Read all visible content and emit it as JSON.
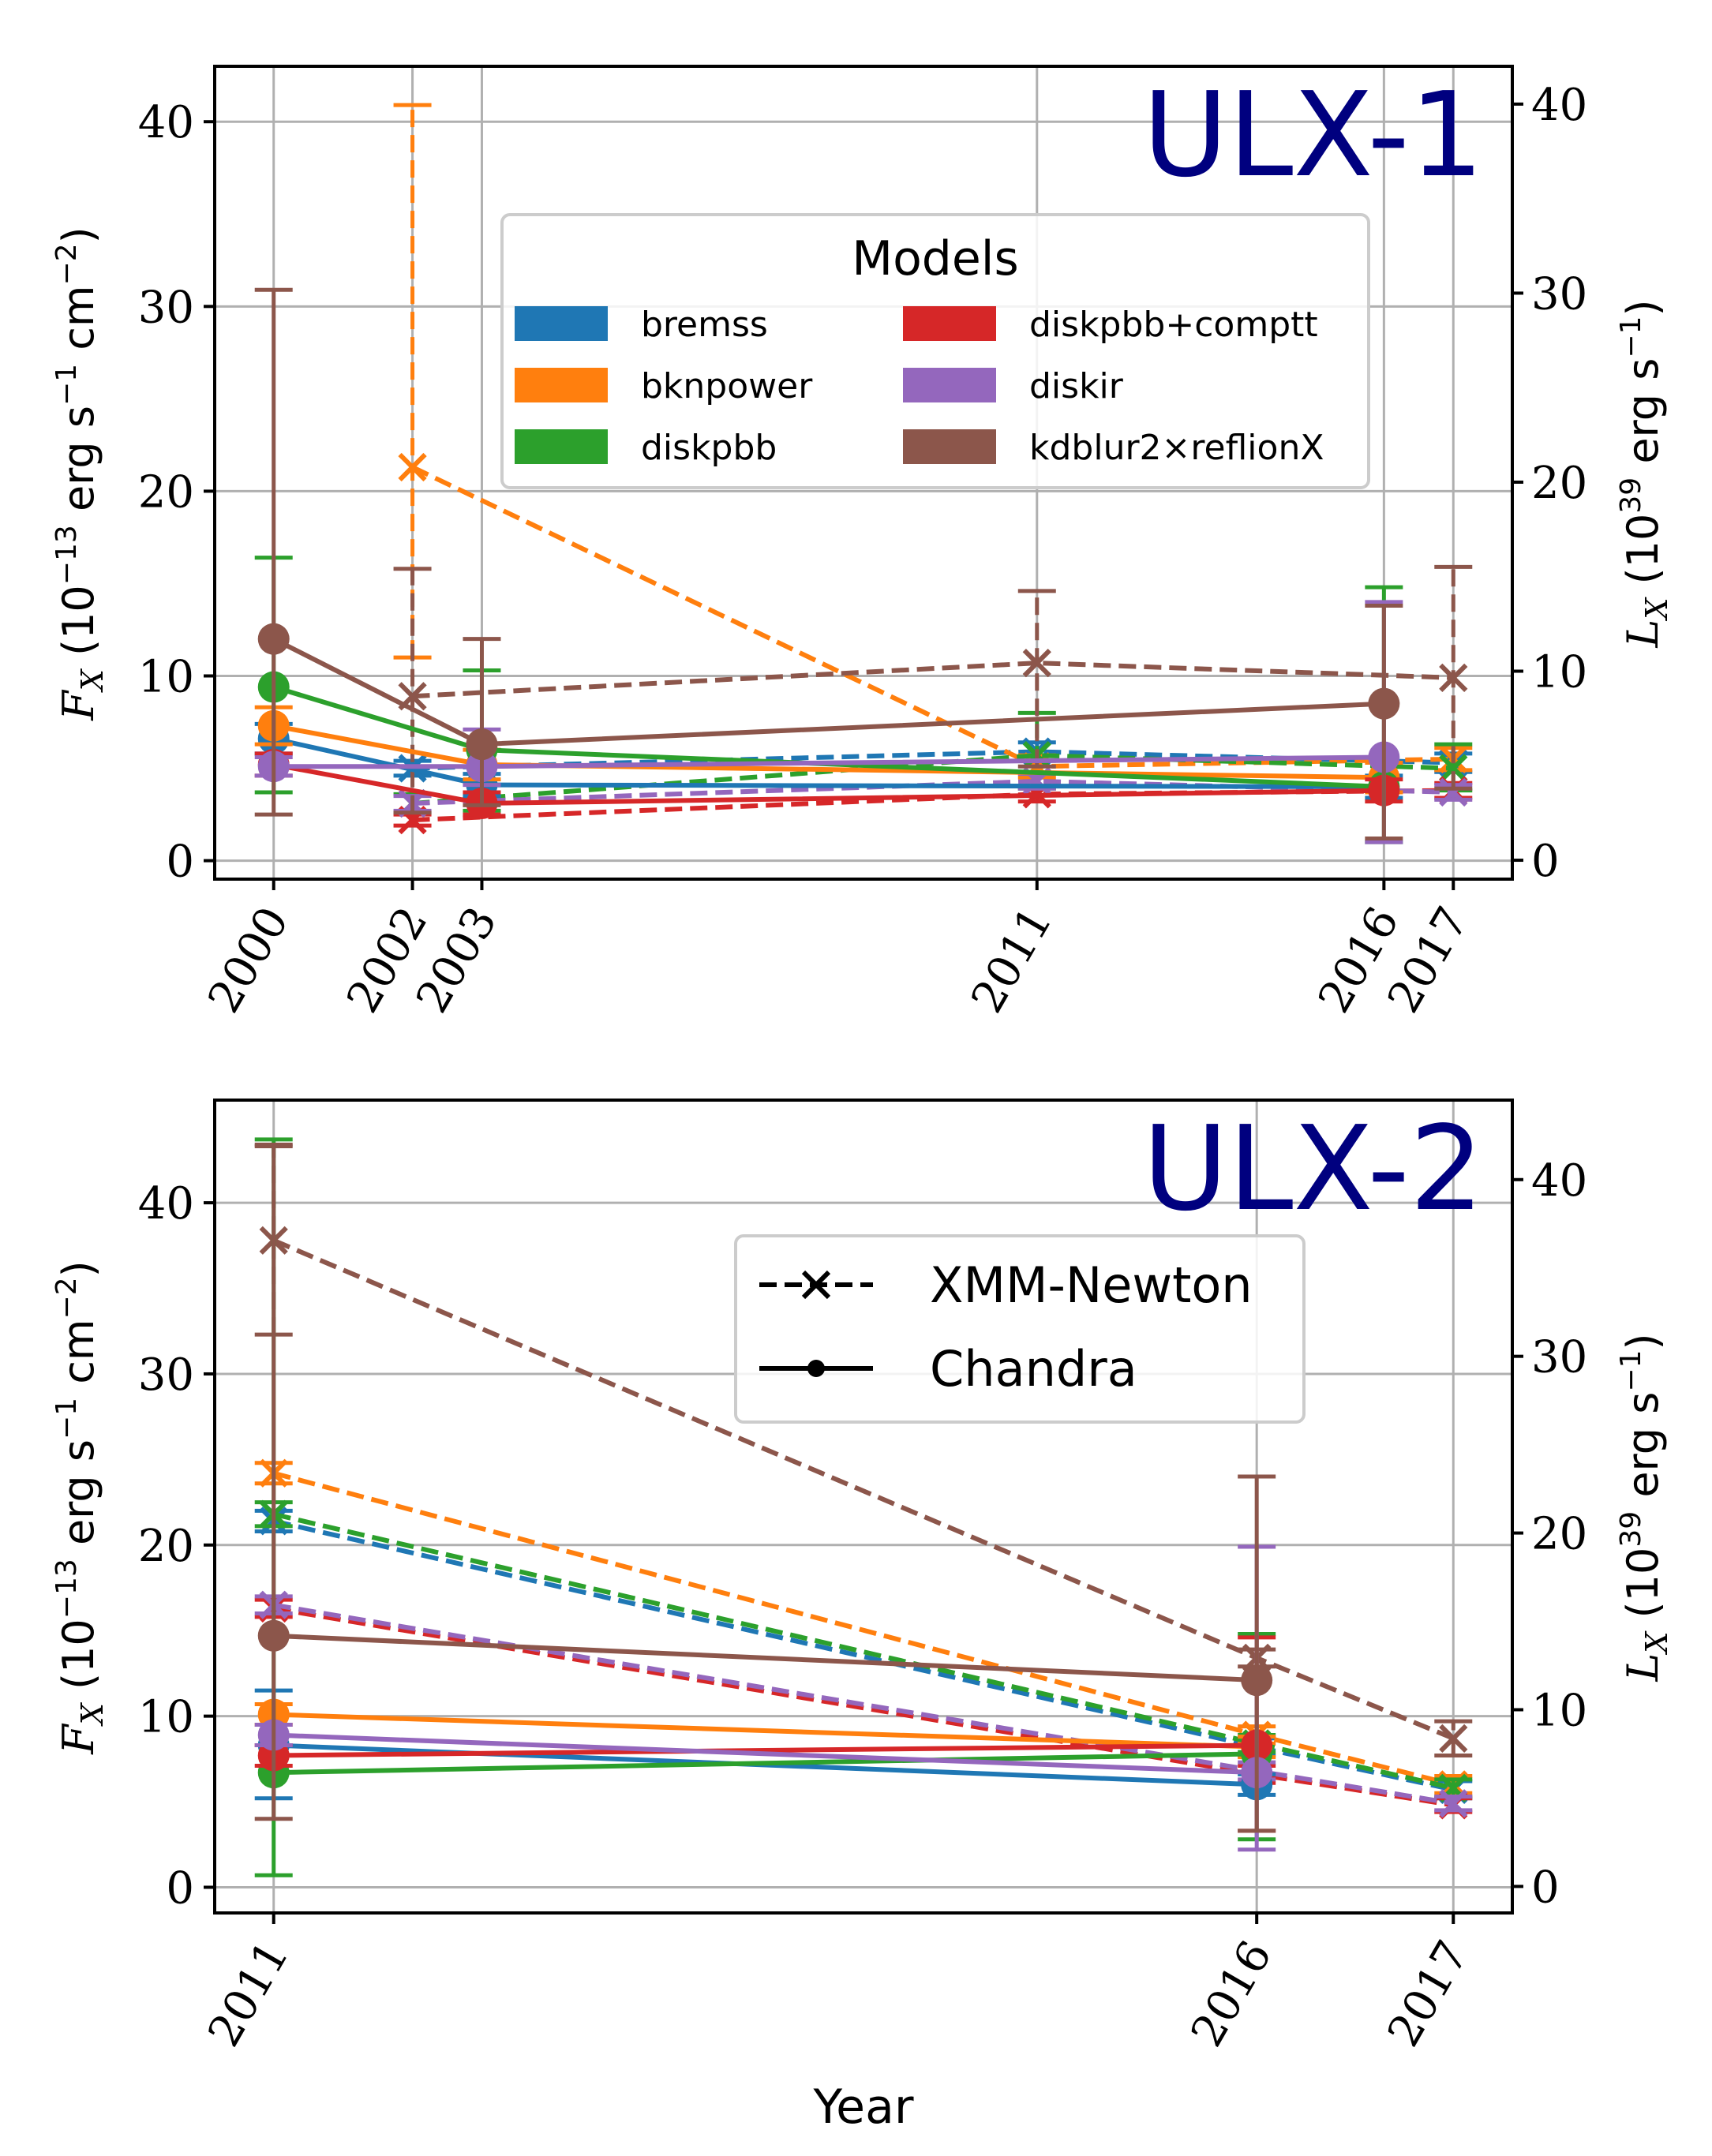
{
  "colors": {
    "bremss": "#1f77b4",
    "bknpower": "#ff7f0e",
    "diskpbb": "#2ca02c",
    "diskpbb+comptt": "#d62728",
    "diskir": "#9467bd",
    "kdblur2×reflionX": "#8c564b",
    "title": "#00007f"
  },
  "legend_models": {
    "title": "Models",
    "items": [
      "bremss",
      "bknpower",
      "diskpbb",
      "diskpbb+comptt",
      "diskir",
      "kdblur2×reflionX"
    ]
  },
  "legend_instruments": {
    "xmm": "XMM-Newton",
    "chandra": "Chandra"
  },
  "xlabel": "Year",
  "chart_data": [
    {
      "type": "line",
      "title": "ULX-1",
      "ylabel_left": "F_X (10^-13 erg s^-1 cm^-2)",
      "ylabel_right": "L_X (10^39 erg s^-1)",
      "x_ticks": [
        2000,
        2002,
        2003,
        2011,
        2016,
        2017
      ],
      "y_ticks": [
        0,
        10,
        20,
        30,
        40
      ],
      "y_ticks_right": [
        0,
        10,
        20,
        30,
        40
      ],
      "ylim": [
        -1,
        43
      ],
      "xlim": [
        1999.15,
        2017.85
      ],
      "series": [
        {
          "model": "bremss",
          "instrument": "Chandra",
          "x": [
            2000,
            2003,
            2016
          ],
          "y": [
            6.6,
            4.1,
            4.0
          ],
          "err": [
            [
              0.8,
              0.8
            ],
            [
              0.6,
              0.6
            ],
            [
              0.6,
              0.6
            ]
          ]
        },
        {
          "model": "bknpower",
          "instrument": "Chandra",
          "x": [
            2000,
            2003,
            2016
          ],
          "y": [
            7.3,
            5.2,
            4.5
          ],
          "err": [
            [
              1.0,
              1.0
            ],
            [
              0.8,
              0.8
            ],
            [
              0.8,
              0.8
            ]
          ]
        },
        {
          "model": "diskpbb",
          "instrument": "Chandra",
          "x": [
            2000,
            2003,
            2016
          ],
          "y": [
            9.4,
            6.0,
            4.0
          ],
          "err": [
            [
              5.7,
              7.0
            ],
            [
              3.3,
              4.3
            ],
            [
              3.0,
              10.8
            ]
          ]
        },
        {
          "model": "diskpbb+comptt",
          "instrument": "Chandra",
          "x": [
            2000,
            2003,
            2016
          ],
          "y": [
            5.2,
            3.1,
            3.8
          ],
          "err": [
            [
              0.6,
              0.6
            ],
            [
              0.6,
              0.6
            ],
            [
              0.6,
              0.6
            ]
          ]
        },
        {
          "model": "diskir",
          "instrument": "Chandra",
          "x": [
            2000,
            2003,
            2016
          ],
          "y": [
            5.1,
            5.1,
            5.6
          ],
          "err": [
            [
              0.5,
              0.5
            ],
            [
              1.0,
              2.0
            ],
            [
              4.6,
              8.4
            ]
          ]
        },
        {
          "model": "kdblur2×reflionX",
          "instrument": "Chandra",
          "x": [
            2000,
            2003,
            2016
          ],
          "y": [
            12.0,
            6.3,
            8.5
          ],
          "err": [
            [
              9.5,
              18.9
            ],
            [
              3.3,
              5.7
            ],
            [
              7.3,
              5.3
            ]
          ]
        },
        {
          "model": "bremss",
          "instrument": "XMM-Newton",
          "x": [
            2002,
            2011,
            2017
          ],
          "y": [
            5.0,
            5.9,
            5.3
          ],
          "err": [
            [
              0.4,
              0.4
            ],
            [
              0.5,
              0.5
            ],
            [
              0.5,
              0.5
            ]
          ]
        },
        {
          "model": "bknpower",
          "instrument": "XMM-Newton",
          "x": [
            2002,
            2011,
            2017
          ],
          "y": [
            21.3,
            5.1,
            5.5
          ],
          "err": [
            [
              10.3,
              19.6
            ],
            [
              0.6,
              0.6
            ],
            [
              0.6,
              0.6
            ]
          ]
        },
        {
          "model": "diskpbb",
          "instrument": "XMM-Newton",
          "x": [
            2002,
            2011,
            2017
          ],
          "y": [
            3.1,
            5.7,
            5.0
          ],
          "err": [
            [
              0.5,
              0.5
            ],
            [
              1.8,
              2.3
            ],
            [
              1.2,
              1.3
            ]
          ]
        },
        {
          "model": "diskpbb+comptt",
          "instrument": "XMM-Newton",
          "x": [
            2002,
            2011,
            2017
          ],
          "y": [
            2.2,
            3.6,
            3.8
          ],
          "err": [
            [
              0.3,
              0.3
            ],
            [
              0.4,
              0.4
            ],
            [
              0.4,
              0.4
            ]
          ]
        },
        {
          "model": "diskir",
          "instrument": "XMM-Newton",
          "x": [
            2002,
            2011,
            2017
          ],
          "y": [
            3.1,
            4.3,
            3.7
          ],
          "err": [
            [
              0.4,
              0.4
            ],
            [
              0.4,
              0.4
            ],
            [
              0.4,
              0.4
            ]
          ]
        },
        {
          "model": "kdblur2×reflionX",
          "instrument": "XMM-Newton",
          "x": [
            2002,
            2011,
            2017
          ],
          "y": [
            8.9,
            10.7,
            9.9
          ],
          "err": [
            [
              6.3,
              6.9
            ],
            [
              5.6,
              3.9
            ],
            [
              6.0,
              6.0
            ]
          ]
        }
      ]
    },
    {
      "type": "line",
      "title": "ULX-2",
      "ylabel_left": "F_X (10^-13 erg s^-1 cm^-2)",
      "ylabel_right": "L_X (10^39 erg s^-1)",
      "xlabel": "Year",
      "x_ticks": [
        2011,
        2016,
        2017
      ],
      "y_ticks": [
        0,
        10,
        20,
        30,
        40
      ],
      "y_ticks_right": [
        0,
        10,
        20,
        30,
        40
      ],
      "ylim": [
        -1.5,
        46
      ],
      "xlim": [
        2010.7,
        2017.3
      ],
      "series": [
        {
          "model": "bremss",
          "instrument": "Chandra",
          "x": [
            2011,
            2016
          ],
          "y": [
            8.3,
            6.0
          ],
          "err": [
            [
              3.1,
              3.2
            ],
            [
              0.6,
              0.6
            ]
          ]
        },
        {
          "model": "bknpower",
          "instrument": "Chandra",
          "x": [
            2011,
            2016
          ],
          "y": [
            10.1,
            8.2
          ],
          "err": [
            [
              0.6,
              0.6
            ],
            [
              0.6,
              0.6
            ]
          ]
        },
        {
          "model": "diskpbb",
          "instrument": "Chandra",
          "x": [
            2011,
            2016
          ],
          "y": [
            6.7,
            7.8
          ],
          "err": [
            [
              6.0,
              37.0
            ],
            [
              5.0,
              7.0
            ]
          ]
        },
        {
          "model": "diskpbb+comptt",
          "instrument": "Chandra",
          "x": [
            2011,
            2016
          ],
          "y": [
            7.7,
            8.3
          ],
          "err": [
            [
              0.6,
              0.6
            ],
            [
              5.0,
              6.3
            ]
          ]
        },
        {
          "model": "diskir",
          "instrument": "Chandra",
          "x": [
            2011,
            2016
          ],
          "y": [
            8.9,
            6.7
          ],
          "err": [
            [
              0.6,
              0.6
            ],
            [
              4.5,
              13.2
            ]
          ]
        },
        {
          "model": "kdblur2×reflionX",
          "instrument": "Chandra",
          "x": [
            2011,
            2016
          ],
          "y": [
            14.7,
            12.1
          ],
          "err": [
            [
              10.7,
              28.7
            ],
            [
              8.8,
              11.9
            ]
          ]
        },
        {
          "model": "bremss",
          "instrument": "XMM-Newton",
          "x": [
            2011,
            2016,
            2017
          ],
          "y": [
            21.4,
            8.2,
            5.7
          ],
          "err": [
            [
              0.6,
              0.6
            ],
            [
              0.5,
              0.5
            ],
            [
              0.5,
              0.5
            ]
          ]
        },
        {
          "model": "bknpower",
          "instrument": "XMM-Newton",
          "x": [
            2011,
            2016,
            2017
          ],
          "y": [
            24.2,
            8.9,
            6.0
          ],
          "err": [
            [
              0.6,
              0.6
            ],
            [
              0.5,
              0.5
            ],
            [
              0.5,
              0.5
            ]
          ]
        },
        {
          "model": "diskpbb",
          "instrument": "XMM-Newton",
          "x": [
            2011,
            2016,
            2017
          ],
          "y": [
            21.8,
            8.4,
            5.8
          ],
          "err": [
            [
              0.7,
              0.7
            ],
            [
              0.5,
              0.5
            ],
            [
              0.5,
              0.5
            ]
          ]
        },
        {
          "model": "diskpbb+comptt",
          "instrument": "XMM-Newton",
          "x": [
            2011,
            2016,
            2017
          ],
          "y": [
            16.3,
            6.6,
            4.8
          ],
          "err": [
            [
              0.5,
              0.5
            ],
            [
              0.5,
              0.5
            ],
            [
              0.4,
              0.4
            ]
          ]
        },
        {
          "model": "diskir",
          "instrument": "XMM-Newton",
          "x": [
            2011,
            2016,
            2017
          ],
          "y": [
            16.5,
            6.8,
            4.9
          ],
          "err": [
            [
              0.5,
              0.5
            ],
            [
              0.5,
              0.5
            ],
            [
              0.4,
              0.4
            ]
          ]
        },
        {
          "model": "kdblur2×reflionX",
          "instrument": "XMM-Newton",
          "x": [
            2011,
            2016,
            2017
          ],
          "y": [
            37.8,
            13.4,
            8.7
          ],
          "err": [
            [
              5.5,
              5.5
            ],
            [
              0.5,
              0.5
            ],
            [
              1.0,
              1.0
            ]
          ]
        }
      ]
    }
  ]
}
